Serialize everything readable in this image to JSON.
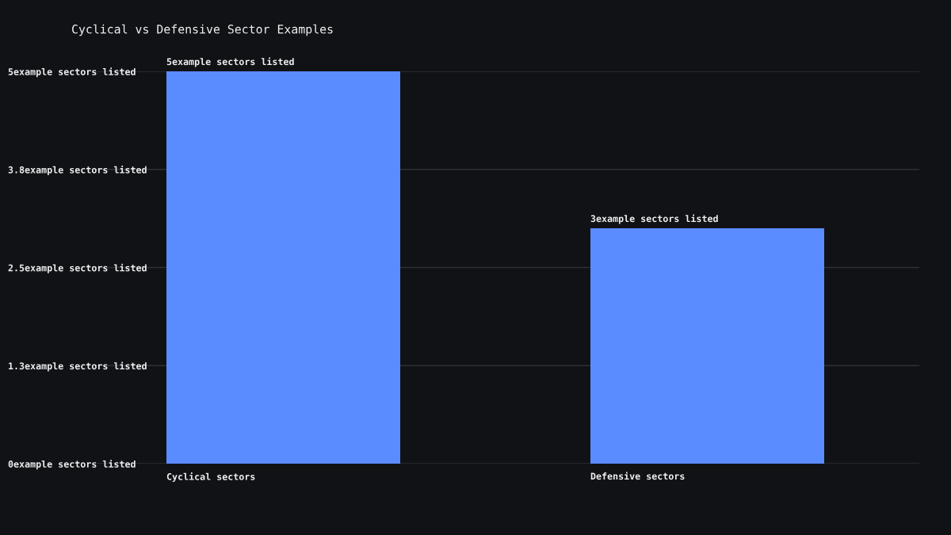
{
  "chart_data": {
    "type": "bar",
    "title": "Cyclical vs Defensive Sector Examples",
    "categories": [
      "Cyclical sectors",
      "Defensive sectors"
    ],
    "values": [
      5,
      3
    ],
    "color": "#5b8cff",
    "value_labels": [
      "5example sectors listed",
      "3example sectors listed"
    ],
    "ylim": [
      0,
      5
    ],
    "yticks": [
      {
        "value": 0,
        "label": "0example sectors listed"
      },
      {
        "value": 1.25,
        "label": "1.3example sectors listed"
      },
      {
        "value": 2.5,
        "label": "2.5example sectors listed"
      },
      {
        "value": 3.75,
        "label": "3.8example sectors listed"
      },
      {
        "value": 5,
        "label": "5example sectors listed"
      }
    ],
    "grid": "y"
  }
}
